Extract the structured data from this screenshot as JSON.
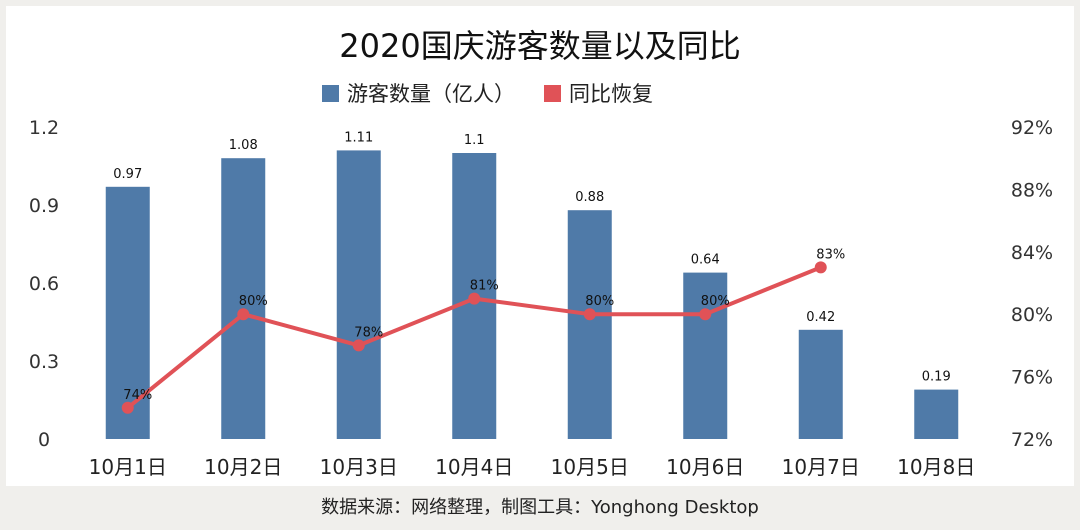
{
  "chart_data": {
    "type": "bar+line",
    "title": "2020国庆游客数量以及同比",
    "categories": [
      "10月1日",
      "10月2日",
      "10月3日",
      "10月4日",
      "10月5日",
      "10月6日",
      "10月7日",
      "10月8日"
    ],
    "series": [
      {
        "name": "游客数量（亿人）",
        "kind": "bar",
        "axis": "left",
        "color": "#4f7aa8",
        "values": [
          0.97,
          1.08,
          1.11,
          1.1,
          0.88,
          0.64,
          0.42,
          0.19
        ],
        "labels": [
          "0.97",
          "1.08",
          "1.11",
          "1.1",
          "0.88",
          "0.64",
          "0.42",
          "0.19"
        ]
      },
      {
        "name": "同比恢复",
        "kind": "line",
        "axis": "right",
        "color": "#e05257",
        "values": [
          74,
          80,
          78,
          81,
          80,
          80,
          83,
          null
        ],
        "labels": [
          "74%",
          "80%",
          "78%",
          "81%",
          "80%",
          "80%",
          "83%",
          ""
        ]
      }
    ],
    "y_left": {
      "lim": [
        0,
        1.2
      ],
      "ticks": [
        "0",
        "0.3",
        "0.6",
        "0.9",
        "1.2"
      ]
    },
    "y_right": {
      "lim": [
        72,
        92
      ],
      "ticks": [
        "72%",
        "76%",
        "80%",
        "84%",
        "88%",
        "92%"
      ]
    },
    "legend": "top-center",
    "grid": false
  },
  "footer": "数据来源：网络整理，制图工具：Yonghong Desktop"
}
